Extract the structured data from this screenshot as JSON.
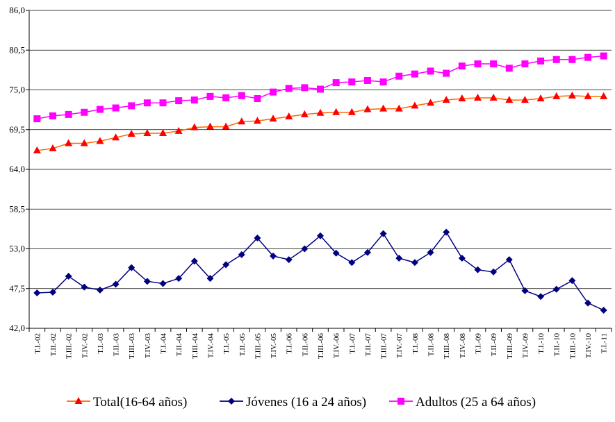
{
  "chart_data": {
    "type": "line",
    "title": "",
    "xlabel": "",
    "ylabel": "",
    "ylim": [
      42.0,
      86.0
    ],
    "yticks": [
      "42,0",
      "47,5",
      "53,0",
      "58,5",
      "64,0",
      "69,5",
      "75,0",
      "80,5",
      "86,0"
    ],
    "grid": true,
    "legend_position": "bottom",
    "categories": [
      "T.I.-02",
      "T.II.-02",
      "T.III.-02",
      "T.IV.-02",
      "T.I.-03",
      "T.II.-03",
      "T.III.-03",
      "T.IV.-03",
      "T.I.-04",
      "T.II.-04",
      "T.III.-04",
      "T.IV.-04",
      "T.I.-05",
      "T.II.-05",
      "T.III.-05",
      "T.IV.-05",
      "T.I.-06",
      "T.II.-06",
      "T.III.-06",
      "T.IV.-06",
      "T.I.-07",
      "T.II.-07",
      "T.III.-07",
      "T.IV.-07",
      "T.I.-08",
      "T.II.-08",
      "T.III.-08",
      "T.IV.-08",
      "T.I.-09",
      "T.II.-09",
      "T.III.-09",
      "T.IV.-09",
      "T.I.-10",
      "T.II.-10",
      "T.III.-10",
      "T.IV.-10",
      "T.I.-11"
    ],
    "series": [
      {
        "name": "Total(16-64 años)",
        "color": "#ff6600",
        "marker_color": "#ff0000",
        "marker": "triangle",
        "values": [
          66.6,
          66.9,
          67.6,
          67.6,
          67.9,
          68.4,
          68.9,
          69.0,
          69.0,
          69.3,
          69.8,
          69.9,
          69.9,
          70.6,
          70.7,
          71.0,
          71.3,
          71.6,
          71.8,
          71.9,
          71.9,
          72.3,
          72.4,
          72.4,
          72.8,
          73.2,
          73.6,
          73.8,
          73.9,
          73.9,
          73.6,
          73.6,
          73.8,
          74.1,
          74.2,
          74.1,
          74.1
        ]
      },
      {
        "name": "Jóvenes (16 a 24 años)",
        "color": "#000080",
        "marker_color": "#000080",
        "marker": "diamond",
        "values": [
          46.9,
          47.0,
          49.2,
          47.7,
          47.3,
          48.1,
          50.4,
          48.5,
          48.2,
          48.9,
          51.3,
          48.9,
          50.8,
          52.2,
          54.5,
          52.0,
          51.5,
          53.0,
          54.8,
          52.4,
          51.1,
          52.5,
          55.1,
          51.7,
          51.1,
          52.5,
          55.3,
          51.7,
          50.1,
          49.8,
          51.5,
          47.2,
          46.4,
          47.4,
          48.6,
          45.5,
          44.5
        ]
      },
      {
        "name": "Adultos (25 a 64 años)",
        "color": "#ff00ff",
        "marker_color": "#ff00ff",
        "marker": "square",
        "values": [
          71.0,
          71.4,
          71.6,
          71.9,
          72.3,
          72.5,
          72.8,
          73.2,
          73.2,
          73.5,
          73.6,
          74.1,
          73.9,
          74.2,
          73.8,
          74.7,
          75.2,
          75.3,
          75.1,
          76.0,
          76.1,
          76.3,
          76.1,
          76.9,
          77.2,
          77.6,
          77.3,
          78.3,
          78.6,
          78.6,
          78.0,
          78.6,
          79.0,
          79.2,
          79.2,
          79.5,
          79.7
        ]
      }
    ]
  }
}
